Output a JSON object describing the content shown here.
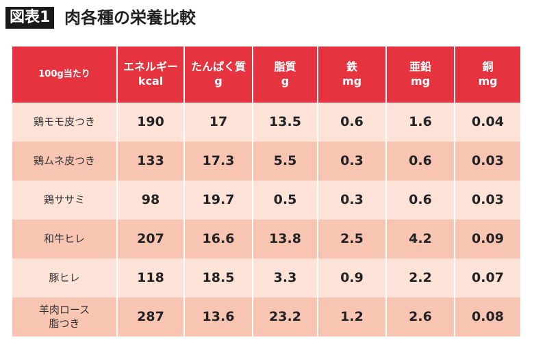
{
  "header": {
    "badge": "図表1",
    "title": "肉各種の栄養比較"
  },
  "table": {
    "columns": [
      {
        "lines": [
          "100g当たり"
        ]
      },
      {
        "lines": [
          "エネルギー",
          "kcal"
        ]
      },
      {
        "lines": [
          "たんぱく質",
          "g"
        ]
      },
      {
        "lines": [
          "脂質",
          "g"
        ]
      },
      {
        "lines": [
          "鉄",
          "mg"
        ]
      },
      {
        "lines": [
          "亜鉛",
          "mg"
        ]
      },
      {
        "lines": [
          "銅",
          "mg"
        ]
      }
    ],
    "rows": [
      {
        "label": [
          "鶏モモ皮つき"
        ],
        "cells": [
          "190",
          "17",
          "13.5",
          "0.6",
          "1.6",
          "0.04"
        ]
      },
      {
        "label": [
          "鶏ムネ皮つき"
        ],
        "cells": [
          "133",
          "17.3",
          "5.5",
          "0.3",
          "0.6",
          "0.03"
        ]
      },
      {
        "label": [
          "鶏ササミ"
        ],
        "cells": [
          "98",
          "19.7",
          "0.5",
          "0.3",
          "0.6",
          "0.03"
        ]
      },
      {
        "label": [
          "和牛ヒレ"
        ],
        "cells": [
          "207",
          "16.6",
          "13.8",
          "2.5",
          "4.2",
          "0.09"
        ]
      },
      {
        "label": [
          "豚ヒレ"
        ],
        "cells": [
          "118",
          "18.5",
          "3.3",
          "0.9",
          "2.2",
          "0.07"
        ]
      },
      {
        "label": [
          "羊肉ロース",
          "脂つき"
        ],
        "cells": [
          "287",
          "13.6",
          "23.2",
          "1.2",
          "2.6",
          "0.08"
        ]
      }
    ]
  }
}
